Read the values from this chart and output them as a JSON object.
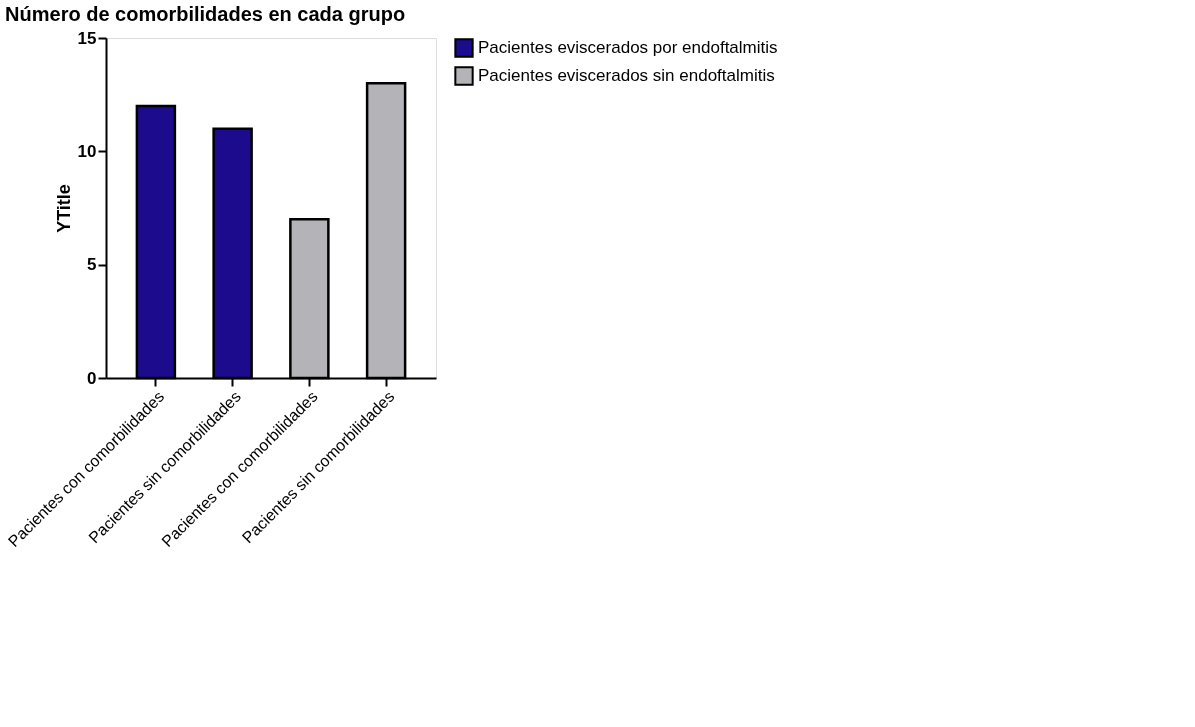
{
  "chart_data": {
    "type": "bar",
    "title": "Número de comorbilidades en cada grupo",
    "ylabel": "YTitle",
    "categories": [
      "Pacientes con comorbilidades",
      "Pacientes sin comorbilidades",
      "Pacientes con comorbilidades",
      "Pacientes sin comorbilidades"
    ],
    "series": [
      {
        "name": "Pacientes eviscerados por endoftalmitis",
        "color": "#1c0b8c",
        "values": [
          12,
          11,
          null,
          null
        ]
      },
      {
        "name": "Pacientes eviscerados sin endoftalmitis",
        "color": "#b4b4b8",
        "values": [
          null,
          null,
          7,
          13
        ]
      }
    ],
    "ylim": [
      0,
      15
    ],
    "yticks": [
      0,
      5,
      10,
      15
    ],
    "grid": false,
    "legend": "top right"
  }
}
